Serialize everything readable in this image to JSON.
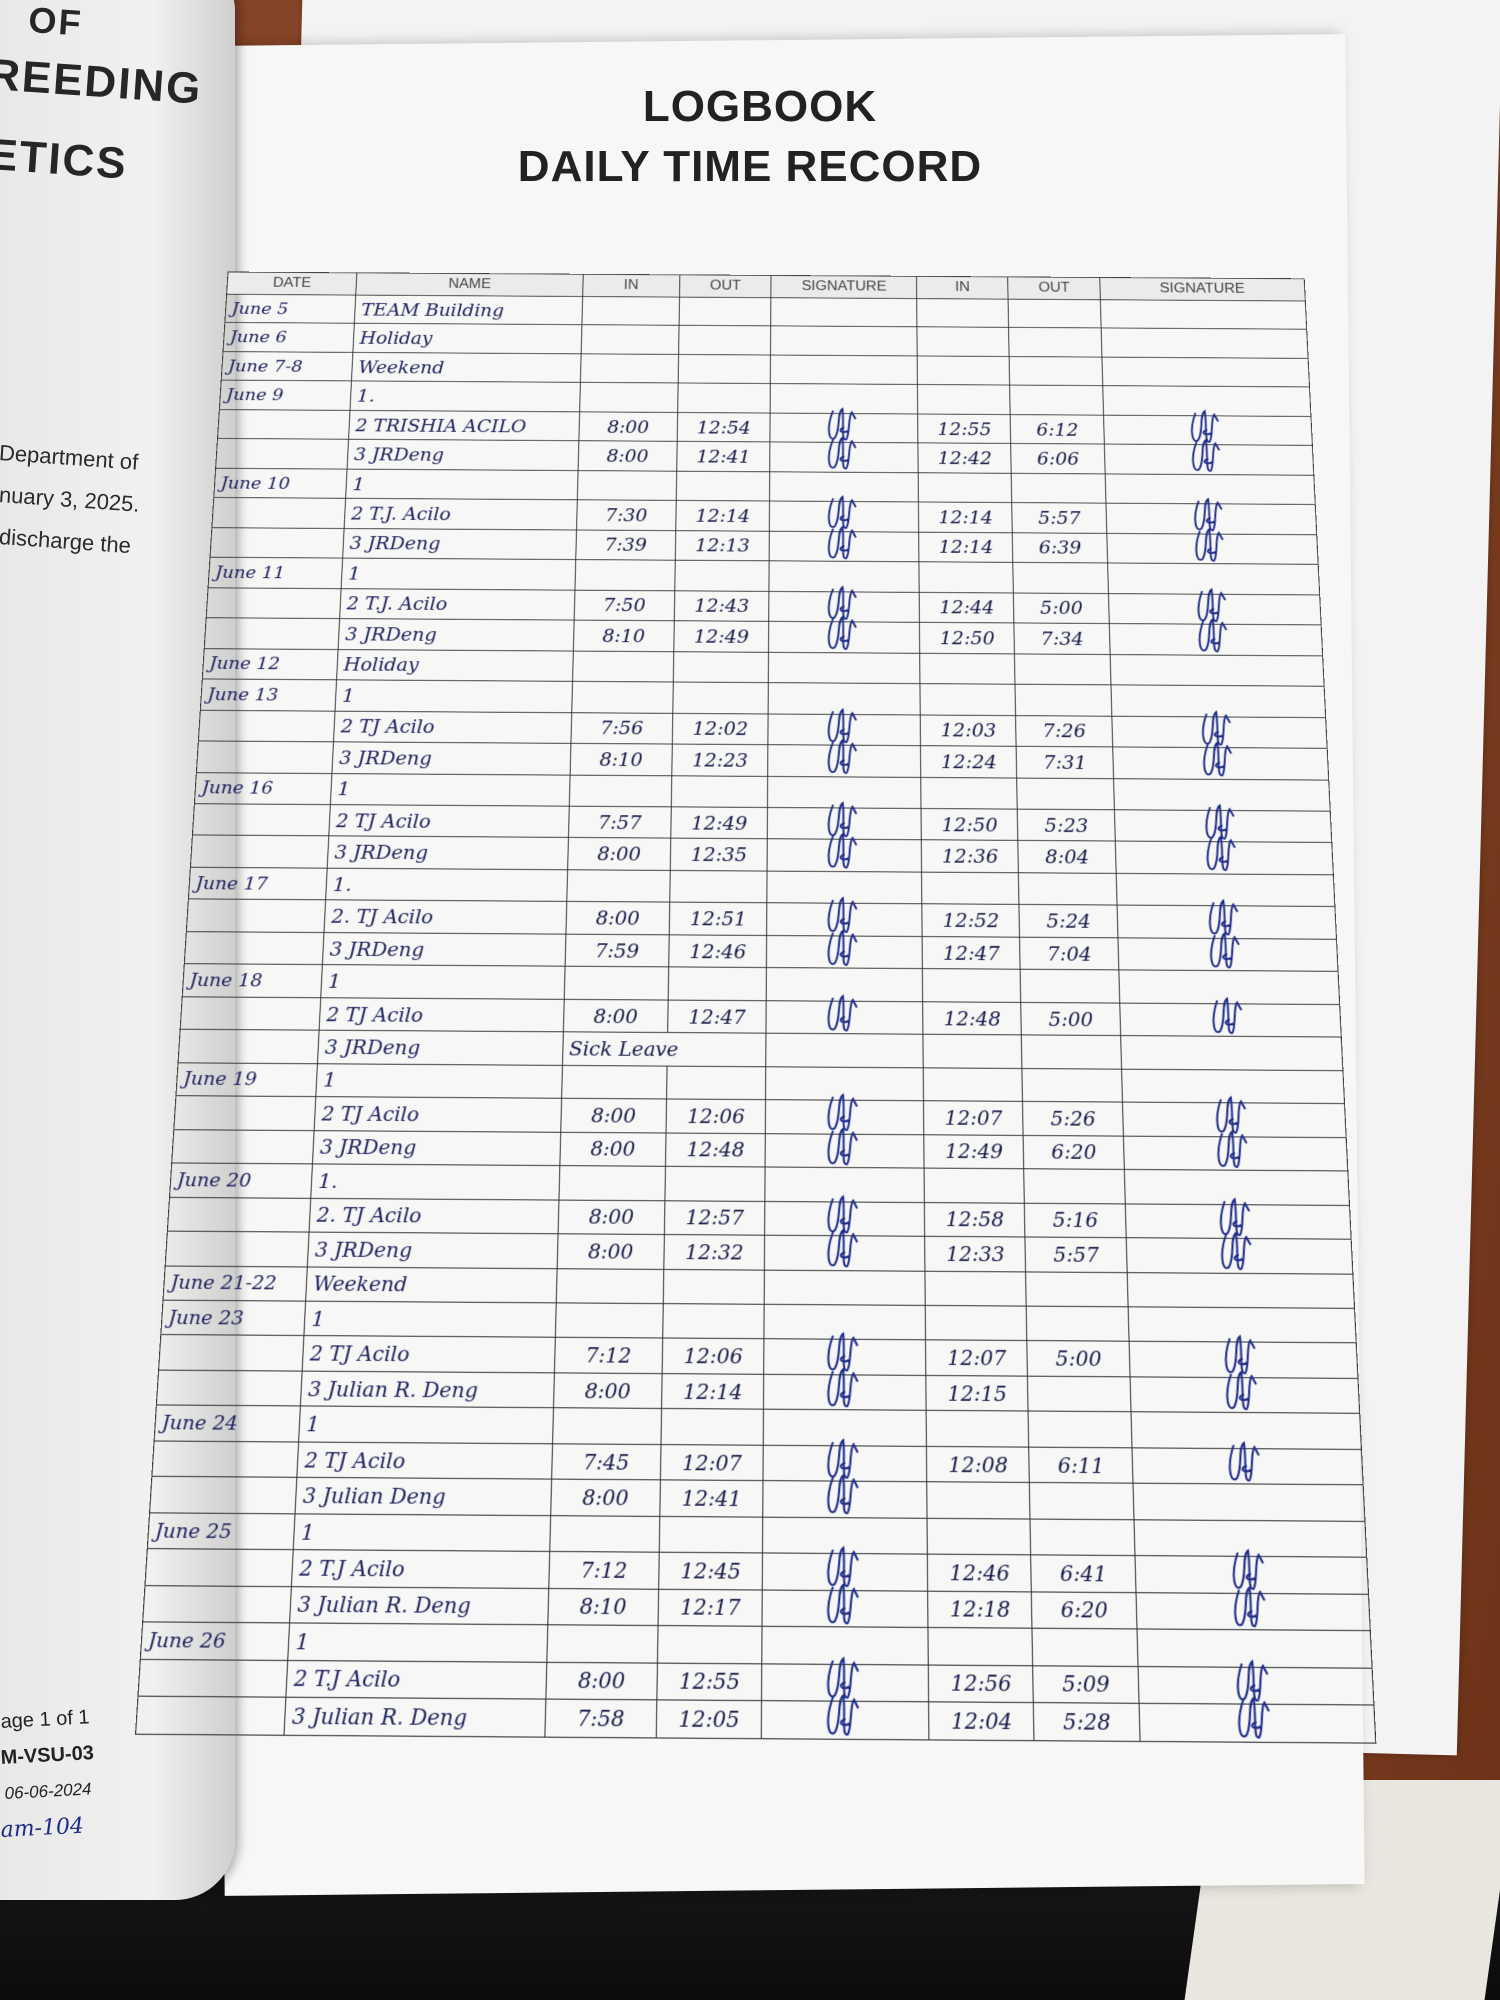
{
  "left_book": {
    "title_lines": [
      "OF",
      "REEDING",
      "ETICS"
    ],
    "body_lines": [
      "Department of",
      "nuary 3, 2025.",
      "discharge the"
    ],
    "footer": {
      "page": "age 1 of 1",
      "code": "M-VSU-03",
      "date": "06-06-2024",
      "handwritten": "am-104"
    }
  },
  "logbook": {
    "title": "LOGBOOK",
    "subtitle": "DAILY TIME RECORD",
    "columns": [
      "DATE",
      "NAME",
      "IN",
      "OUT",
      "SIGNATURE",
      "IN",
      "OUT",
      "SIGNATURE"
    ],
    "ink_color": "#1d2a88",
    "rows": [
      {
        "date": "June 5",
        "name": "TEAM Building",
        "in1": "",
        "out1": "",
        "sig1": false,
        "in2": "",
        "out2": "",
        "sig2": false
      },
      {
        "date": "June 6",
        "name": "Holiday",
        "in1": "",
        "out1": "",
        "sig1": false,
        "in2": "",
        "out2": "",
        "sig2": false
      },
      {
        "date": "June 7-8",
        "name": "Weekend",
        "in1": "",
        "out1": "",
        "sig1": false,
        "in2": "",
        "out2": "",
        "sig2": false
      },
      {
        "date": "June 9",
        "name": "1.",
        "in1": "",
        "out1": "",
        "sig1": false,
        "in2": "",
        "out2": "",
        "sig2": false
      },
      {
        "date": "",
        "name": "2 TRISHIA ACILO",
        "in1": "8:00",
        "out1": "12:54",
        "sig1": true,
        "in2": "12:55",
        "out2": "6:12",
        "sig2": true
      },
      {
        "date": "",
        "name": "3 JRDeng",
        "in1": "8:00",
        "out1": "12:41",
        "sig1": true,
        "in2": "12:42",
        "out2": "6:06",
        "sig2": true
      },
      {
        "date": "June 10",
        "name": "1",
        "in1": "",
        "out1": "",
        "sig1": false,
        "in2": "",
        "out2": "",
        "sig2": false
      },
      {
        "date": "",
        "name": "2 T.J. Acilo",
        "in1": "7:30",
        "out1": "12:14",
        "sig1": true,
        "in2": "12:14",
        "out2": "5:57",
        "sig2": true
      },
      {
        "date": "",
        "name": "3 JRDeng",
        "in1": "7:39",
        "out1": "12:13",
        "sig1": true,
        "in2": "12:14",
        "out2": "6:39",
        "sig2": true
      },
      {
        "date": "June 11",
        "name": "1",
        "in1": "",
        "out1": "",
        "sig1": false,
        "in2": "",
        "out2": "",
        "sig2": false
      },
      {
        "date": "",
        "name": "2 T.J. Acilo",
        "in1": "7:50",
        "out1": "12:43",
        "sig1": true,
        "in2": "12:44",
        "out2": "5:00",
        "sig2": true
      },
      {
        "date": "",
        "name": "3 JRDeng",
        "in1": "8:10",
        "out1": "12:49",
        "sig1": true,
        "in2": "12:50",
        "out2": "7:34",
        "sig2": true
      },
      {
        "date": "June 12",
        "name": "Holiday",
        "in1": "",
        "out1": "",
        "sig1": false,
        "in2": "",
        "out2": "",
        "sig2": false
      },
      {
        "date": "June 13",
        "name": "1",
        "in1": "",
        "out1": "",
        "sig1": false,
        "in2": "",
        "out2": "",
        "sig2": false
      },
      {
        "date": "",
        "name": "2 TJ Acilo",
        "in1": "7:56",
        "out1": "12:02",
        "sig1": true,
        "in2": "12:03",
        "out2": "7:26",
        "sig2": true
      },
      {
        "date": "",
        "name": "3 JRDeng",
        "in1": "8:10",
        "out1": "12:23",
        "sig1": true,
        "in2": "12:24",
        "out2": "7:31",
        "sig2": true
      },
      {
        "date": "June 16",
        "name": "1",
        "in1": "",
        "out1": "",
        "sig1": false,
        "in2": "",
        "out2": "",
        "sig2": false
      },
      {
        "date": "",
        "name": "2 TJ Acilo",
        "in1": "7:57",
        "out1": "12:49",
        "sig1": true,
        "in2": "12:50",
        "out2": "5:23",
        "sig2": true
      },
      {
        "date": "",
        "name": "3 JRDeng",
        "in1": "8:00",
        "out1": "12:35",
        "sig1": true,
        "in2": "12:36",
        "out2": "8:04",
        "sig2": true
      },
      {
        "date": "June 17",
        "name": "1.",
        "in1": "",
        "out1": "",
        "sig1": false,
        "in2": "",
        "out2": "",
        "sig2": false
      },
      {
        "date": "",
        "name": "2. TJ Acilo",
        "in1": "8:00",
        "out1": "12:51",
        "sig1": true,
        "in2": "12:52",
        "out2": "5:24",
        "sig2": true
      },
      {
        "date": "",
        "name": "3 JRDeng",
        "in1": "7:59",
        "out1": "12:46",
        "sig1": true,
        "in2": "12:47",
        "out2": "7:04",
        "sig2": true
      },
      {
        "date": "June 18",
        "name": "1",
        "in1": "",
        "out1": "",
        "sig1": false,
        "in2": "",
        "out2": "",
        "sig2": false
      },
      {
        "date": "",
        "name": "2 TJ Acilo",
        "in1": "8:00",
        "out1": "12:47",
        "sig1": true,
        "in2": "12:48",
        "out2": "5:00",
        "sig2": true
      },
      {
        "date": "",
        "name": "3 JRDeng",
        "in1": "Sick Leave",
        "out1": "",
        "sig1": false,
        "in2": "",
        "out2": "",
        "sig2": false
      },
      {
        "date": "June 19",
        "name": "1",
        "in1": "",
        "out1": "",
        "sig1": false,
        "in2": "",
        "out2": "",
        "sig2": false
      },
      {
        "date": "",
        "name": "2 TJ Acilo",
        "in1": "8:00",
        "out1": "12:06",
        "sig1": true,
        "in2": "12:07",
        "out2": "5:26",
        "sig2": true
      },
      {
        "date": "",
        "name": "3 JRDeng",
        "in1": "8:00",
        "out1": "12:48",
        "sig1": true,
        "in2": "12:49",
        "out2": "6:20",
        "sig2": true
      },
      {
        "date": "June 20",
        "name": "1.",
        "in1": "",
        "out1": "",
        "sig1": false,
        "in2": "",
        "out2": "",
        "sig2": false
      },
      {
        "date": "",
        "name": "2. TJ Acilo",
        "in1": "8:00",
        "out1": "12:57",
        "sig1": true,
        "in2": "12:58",
        "out2": "5:16",
        "sig2": true
      },
      {
        "date": "",
        "name": "3 JRDeng",
        "in1": "8:00",
        "out1": "12:32",
        "sig1": true,
        "in2": "12:33",
        "out2": "5:57",
        "sig2": true
      },
      {
        "date": "June 21-22",
        "name": "Weekend",
        "in1": "",
        "out1": "",
        "sig1": false,
        "in2": "",
        "out2": "",
        "sig2": false
      },
      {
        "date": "June 23",
        "name": "1",
        "in1": "",
        "out1": "",
        "sig1": false,
        "in2": "",
        "out2": "",
        "sig2": false
      },
      {
        "date": "",
        "name": "2 TJ Acilo",
        "in1": "7:12",
        "out1": "12:06",
        "sig1": true,
        "in2": "12:07",
        "out2": "5:00",
        "sig2": true
      },
      {
        "date": "",
        "name": "3 Julian R. Deng",
        "in1": "8:00",
        "out1": "12:14",
        "sig1": true,
        "in2": "12:15",
        "out2": "",
        "sig2": true
      },
      {
        "date": "June 24",
        "name": "1",
        "in1": "",
        "out1": "",
        "sig1": false,
        "in2": "",
        "out2": "",
        "sig2": false
      },
      {
        "date": "",
        "name": "2 TJ Acilo",
        "in1": "7:45",
        "out1": "12:07",
        "sig1": true,
        "in2": "12:08",
        "out2": "6:11",
        "sig2": true
      },
      {
        "date": "",
        "name": "3 Julian Deng",
        "in1": "8:00",
        "out1": "12:41",
        "sig1": true,
        "in2": "",
        "out2": "",
        "sig2": false
      },
      {
        "date": "June 25",
        "name": "1",
        "in1": "",
        "out1": "",
        "sig1": false,
        "in2": "",
        "out2": "",
        "sig2": false
      },
      {
        "date": "",
        "name": "2 T.J Acilo",
        "in1": "7:12",
        "out1": "12:45",
        "sig1": true,
        "in2": "12:46",
        "out2": "6:41",
        "sig2": true
      },
      {
        "date": "",
        "name": "3 Julian R. Deng",
        "in1": "8:10",
        "out1": "12:17",
        "sig1": true,
        "in2": "12:18",
        "out2": "6:20",
        "sig2": true
      },
      {
        "date": "June 26",
        "name": "1",
        "in1": "",
        "out1": "",
        "sig1": false,
        "in2": "",
        "out2": "",
        "sig2": false
      },
      {
        "date": "",
        "name": "2 T.J Acilo",
        "in1": "8:00",
        "out1": "12:55",
        "sig1": true,
        "in2": "12:56",
        "out2": "5:09",
        "sig2": true
      },
      {
        "date": "",
        "name": "3 Julian R. Deng",
        "in1": "7:58",
        "out1": "12:05",
        "sig1": true,
        "in2": "12:04",
        "out2": "5:28",
        "sig2": true
      }
    ]
  }
}
